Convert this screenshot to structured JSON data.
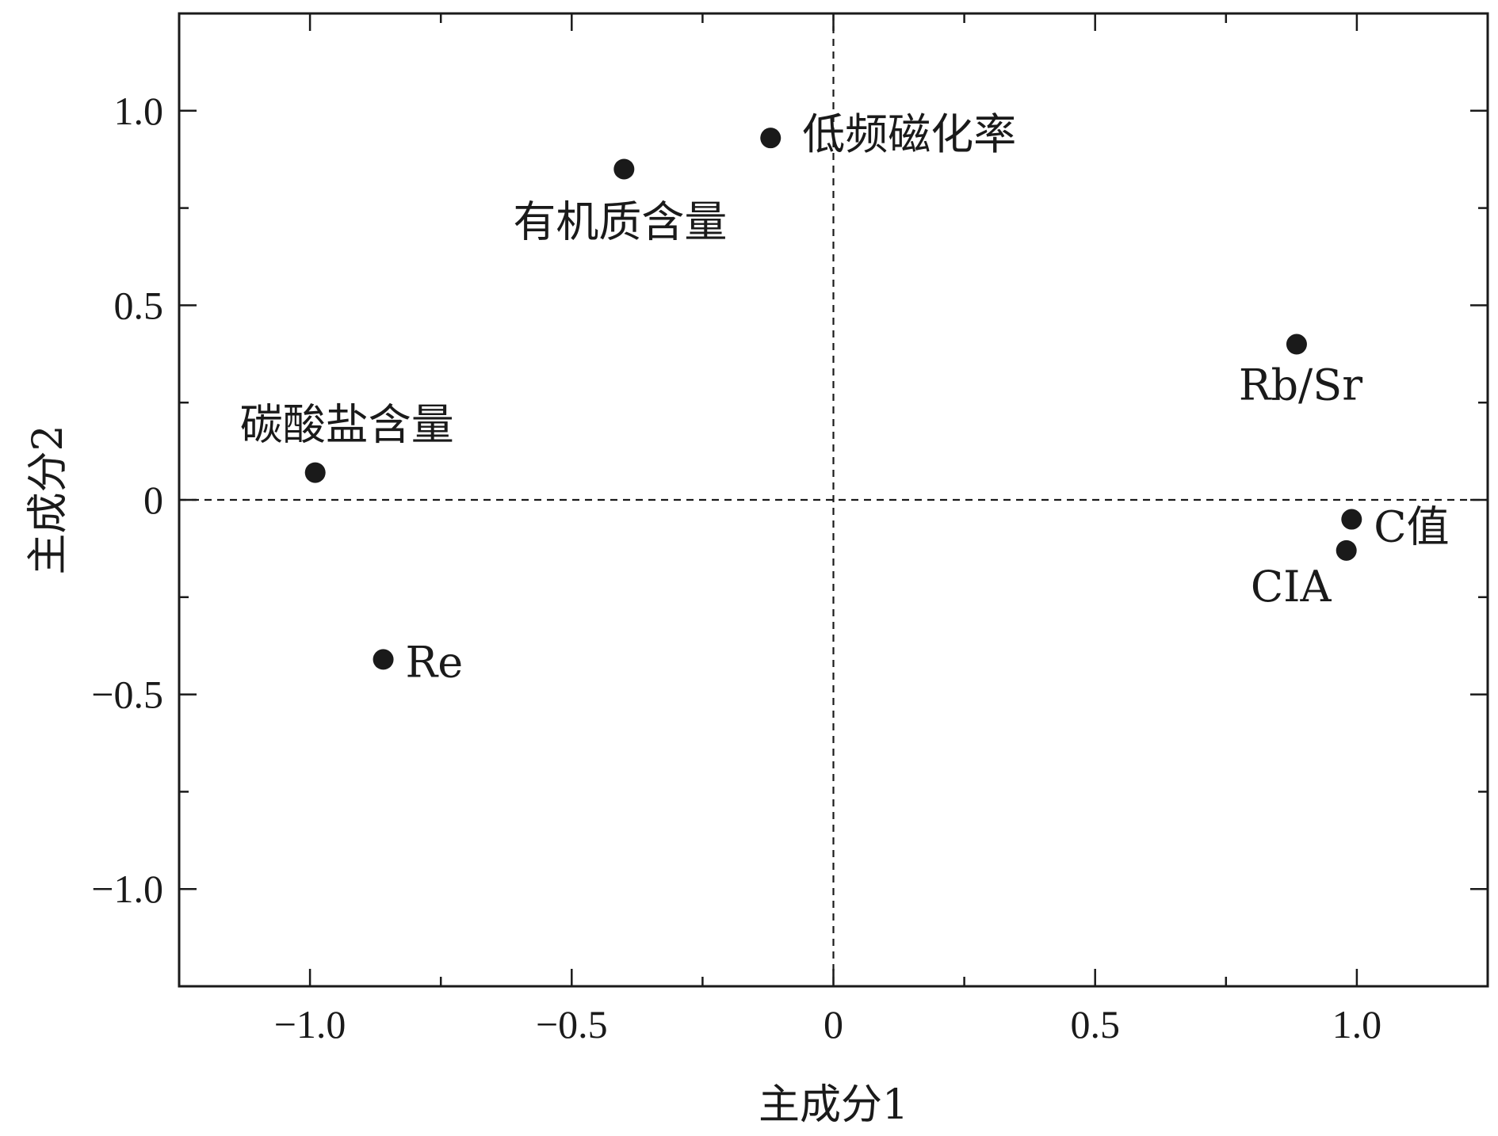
{
  "chart_data": {
    "type": "scatter",
    "xlabel": "主成分1",
    "ylabel": "主成分2",
    "xlim": [
      -1.25,
      1.25
    ],
    "ylim": [
      -1.25,
      1.25
    ],
    "x_ticks": [
      -1.0,
      -0.5,
      0,
      0.5,
      1.0
    ],
    "y_ticks": [
      -1.0,
      -0.5,
      0,
      0.5,
      1.0
    ],
    "x_tick_labels": [
      "−1.0",
      "−0.5",
      "0",
      "0.5",
      "1.0"
    ],
    "y_tick_labels": [
      "−1.0",
      "−0.5",
      "0",
      "0.5",
      "1.0"
    ],
    "minor_tick_step": 0.25,
    "reference_lines": [
      0,
      0
    ],
    "grid": false,
    "marker_color": "#1a1a1a",
    "points": [
      {
        "label": "低频磁化率",
        "x": -0.12,
        "y": 0.93
      },
      {
        "label": "有机质含量",
        "x": -0.4,
        "y": 0.85
      },
      {
        "label": "Rb/Sr",
        "x": 0.885,
        "y": 0.4
      },
      {
        "label": "碳酸盐含量",
        "x": -0.99,
        "y": 0.07
      },
      {
        "label": "C值",
        "x": 0.99,
        "y": -0.05
      },
      {
        "label": "CIA",
        "x": 0.98,
        "y": -0.13
      },
      {
        "label": "Re",
        "x": -0.86,
        "y": -0.41
      }
    ]
  }
}
